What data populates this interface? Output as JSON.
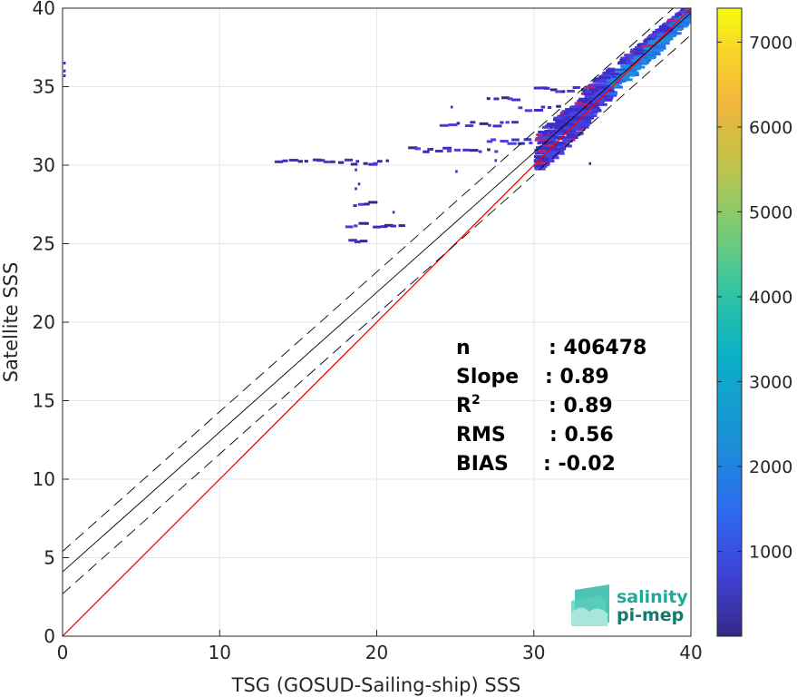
{
  "chart_data": {
    "type": "scatter",
    "subtype": "2d-density-histogram",
    "xlabel": "TSG (GOSUD-Sailing-ship) SSS",
    "ylabel": "Satellite SSS",
    "xlim": [
      0,
      40
    ],
    "ylim": [
      0,
      40
    ],
    "xticks": [
      "0",
      "10",
      "20",
      "30",
      "40"
    ],
    "yticks": [
      "0",
      "5",
      "10",
      "15",
      "20",
      "25",
      "30",
      "35",
      "40"
    ],
    "grid": true,
    "colorbar": {
      "colormap": "parula",
      "range": [
        0,
        7400
      ],
      "ticks": [
        "1000",
        "2000",
        "3000",
        "4000",
        "5000",
        "6000",
        "7000"
      ]
    },
    "lines": [
      {
        "role": "identity",
        "color": "#ff0000",
        "x": [
          0,
          40
        ],
        "y": [
          0,
          40
        ]
      },
      {
        "role": "regression",
        "color": "#000000",
        "x": [
          0,
          40
        ],
        "y": [
          4.1,
          39.7
        ]
      },
      {
        "role": "upper-bound",
        "color": "#000000",
        "dash": true,
        "x": [
          0,
          40
        ],
        "y": [
          5.4,
          41.0
        ]
      },
      {
        "role": "lower-bound",
        "color": "#000000",
        "dash": true,
        "x": [
          0,
          40
        ],
        "y": [
          2.7,
          38.3
        ]
      }
    ],
    "density_clusters": [
      {
        "x": [
          30,
          40
        ],
        "y": [
          31,
          40
        ],
        "level": "high"
      },
      {
        "x": [
          13.5,
          21
        ],
        "y": [
          30.1,
          30.3
        ],
        "level": "low"
      },
      {
        "x": [
          17.8,
          21.5
        ],
        "y": [
          25,
          27
        ],
        "level": "low"
      },
      {
        "x": [
          0,
          0.2
        ],
        "y": [
          35.6,
          36.7
        ],
        "level": "low"
      }
    ],
    "stats": [
      {
        "label": "n",
        "value": ": 406478"
      },
      {
        "label": "Slope",
        "value": ": 0.89"
      },
      {
        "label": "R",
        "sup": "2",
        "value": ": 0.89"
      },
      {
        "label": "RMS",
        "value": ": 0.56"
      },
      {
        "label": "BIAS",
        "value": ": -0.02"
      }
    ]
  },
  "logo": {
    "line1": "salinity",
    "line2": "pi-mep",
    "color1": "#1fa99a",
    "color2": "#127a6f"
  }
}
